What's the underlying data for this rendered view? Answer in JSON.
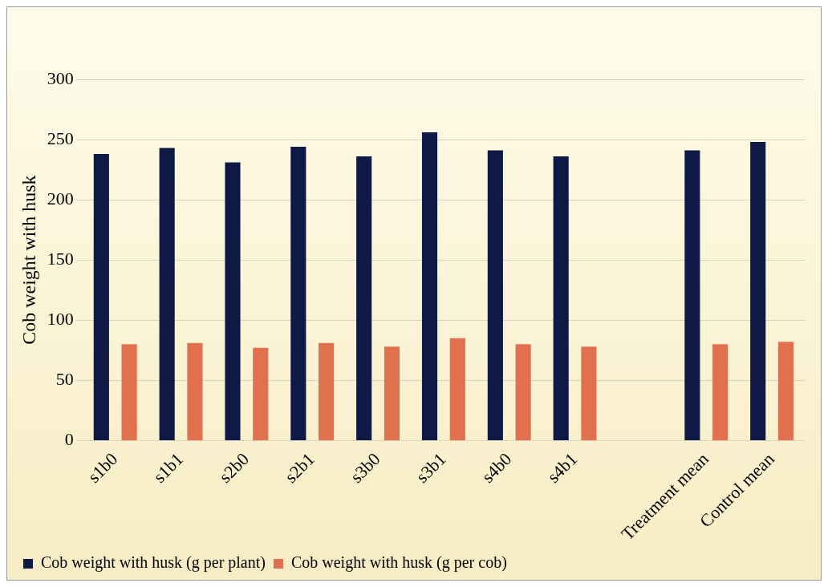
{
  "chart_data": {
    "type": "bar",
    "ylabel": "Cob weight with husk",
    "categories": [
      "s1b0",
      "s1b1",
      "s2b0",
      "s2b1",
      "s3b0",
      "s3b1",
      "s4b0",
      "s4b1",
      null,
      "Treatment mean",
      "Control mean"
    ],
    "series": [
      {
        "name": "Cob weight with husk (g per plant)",
        "color": "#0e1a45",
        "values": [
          238,
          243,
          231,
          244,
          236,
          256,
          241,
          236,
          null,
          241,
          248
        ]
      },
      {
        "name": "Cob weight with husk (g per cob)",
        "color": "#e0704e",
        "values": [
          80,
          81,
          77,
          81,
          78,
          85,
          80,
          78,
          null,
          80,
          82
        ]
      }
    ],
    "ylim": [
      0,
      300
    ],
    "yticks": [
      0,
      50,
      100,
      150,
      200,
      250,
      300
    ],
    "grid": "y",
    "legend": "bottom"
  }
}
